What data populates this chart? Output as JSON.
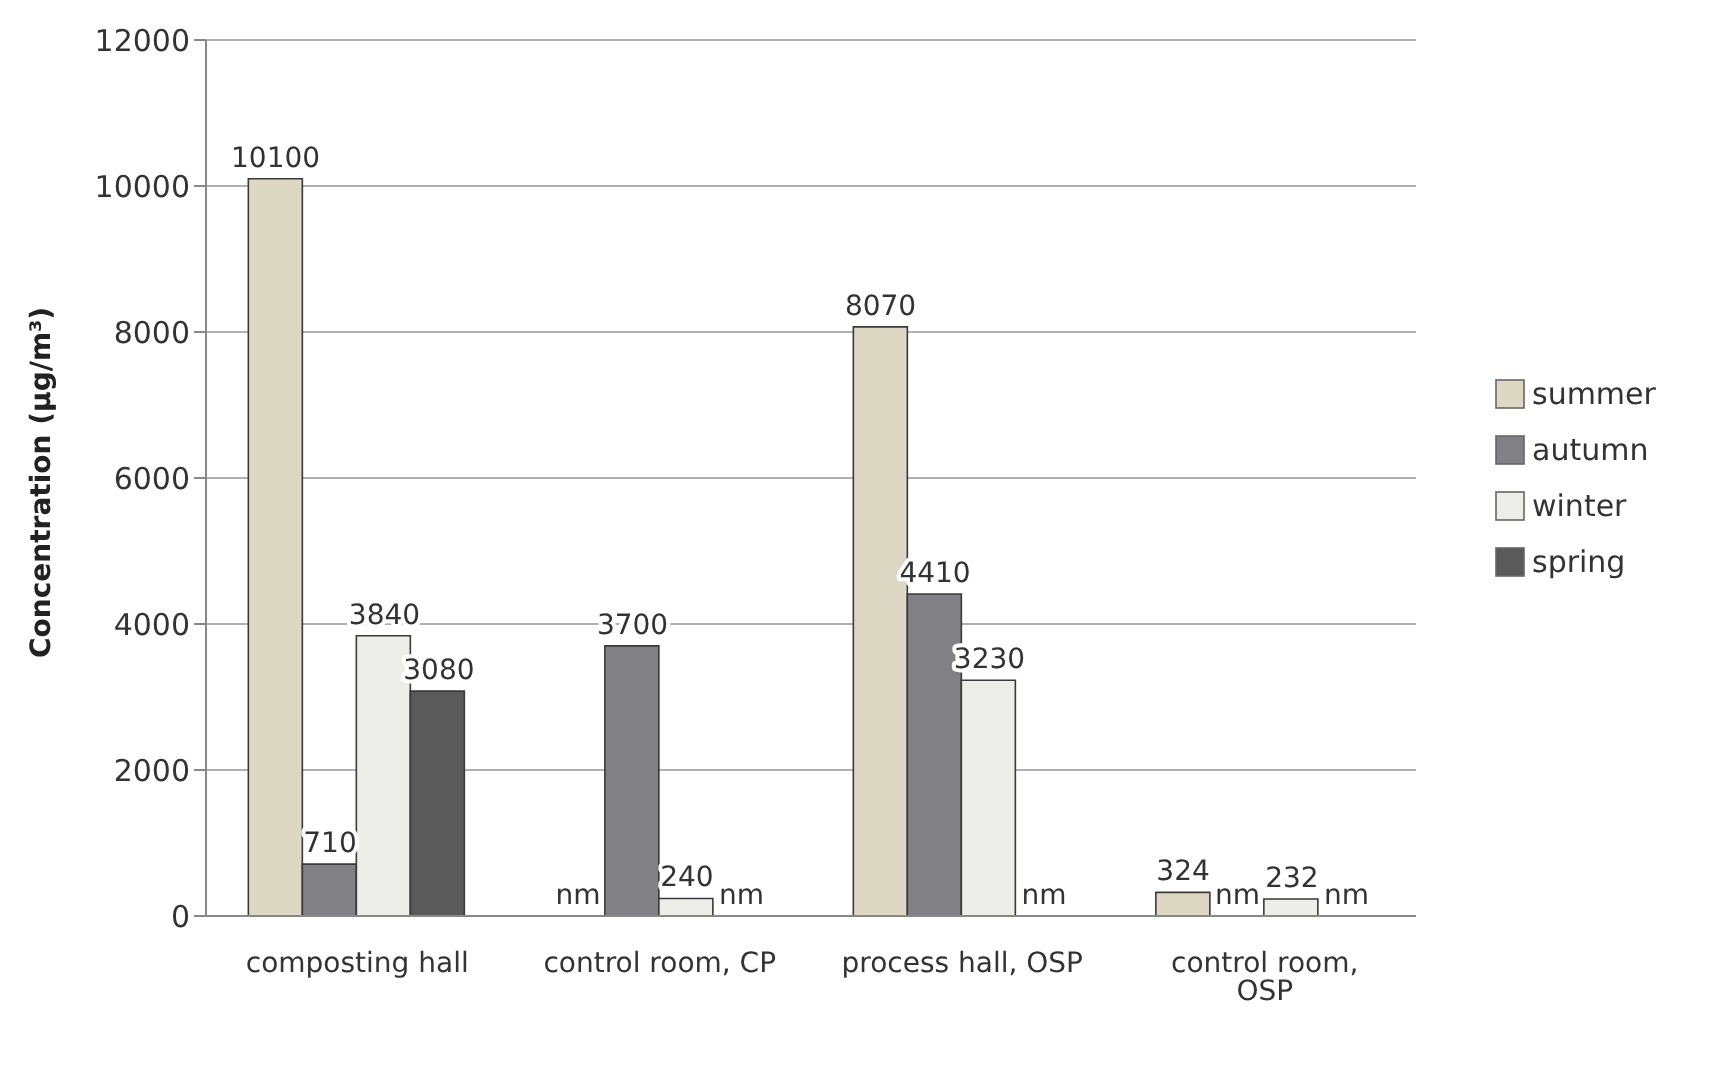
{
  "chart_data": {
    "type": "bar",
    "ylabel": "Concentration (µg/m³)",
    "categories": [
      "composting hall",
      "control room, CP",
      "process hall, OSP",
      "control room, OSP"
    ],
    "series": [
      {
        "name": "summer",
        "color": "#ddd8c4",
        "values": [
          10100,
          null,
          8070,
          324
        ],
        "value_labels": [
          "10100",
          "nm",
          "8070",
          "324"
        ]
      },
      {
        "name": "autumn",
        "color": "#808085",
        "values": [
          710,
          3700,
          4410,
          null
        ],
        "value_labels": [
          "710",
          "3700",
          "4410",
          "nm"
        ]
      },
      {
        "name": "winter",
        "color": "#ededea",
        "values": [
          3840,
          240,
          3230,
          232
        ],
        "value_labels": [
          "3840",
          "240",
          "3230",
          "232"
        ]
      },
      {
        "name": "spring",
        "color": "#5a5a5a",
        "values": [
          3080,
          null,
          null,
          null
        ],
        "value_labels": [
          "3080",
          "nm",
          "nm",
          "nm"
        ]
      }
    ],
    "ylim": [
      0,
      12000
    ],
    "yticks": [
      0,
      2000,
      4000,
      6000,
      8000,
      10000,
      12000
    ],
    "grid": "y",
    "legend": "right"
  }
}
